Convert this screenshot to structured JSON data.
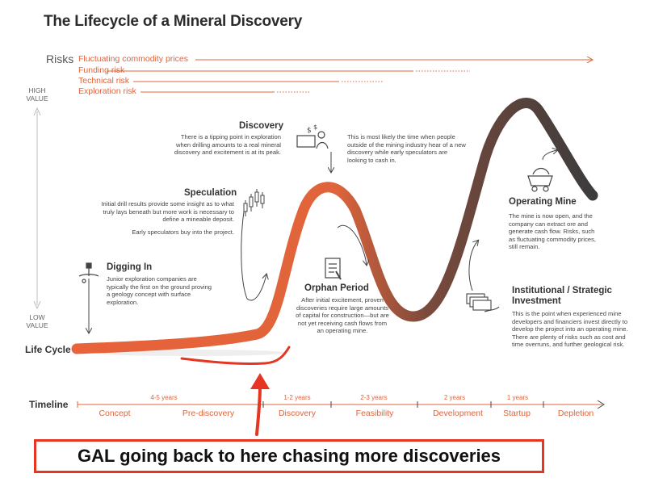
{
  "title": "The Lifecycle of a Mineral Discovery",
  "risks": {
    "label": "Risks",
    "items": [
      {
        "name": "Fluctuating commodity prices"
      },
      {
        "name": "Funding risk"
      },
      {
        "name": "Technical risk"
      },
      {
        "name": "Exploration risk"
      }
    ]
  },
  "value_axis": {
    "high": "HIGH VALUE",
    "low": "LOW VALUE"
  },
  "lifecycle_label": "Life Cycle",
  "stages": {
    "digging_in": {
      "title": "Digging In",
      "desc": "Junior exploration companies are typically the first on the ground proving a geology concept with surface exploration."
    },
    "speculation": {
      "title": "Speculation",
      "desc": "Initial drill results provide some insight as to what truly lays beneath but more work is necessary to define a mineable deposit.",
      "desc2": "Early speculators buy into the project."
    },
    "discovery": {
      "title": "Discovery",
      "desc": "There is a tipping point in exploration when drilling amounts to a real mineral discovery and excitement is at its peak.",
      "side_note": "This is most likely the time when people outside of the mining industry hear of a new discovery while early speculators are looking to cash in."
    },
    "orphan": {
      "title": "Orphan Period",
      "desc": "After initial excitement, proven discoveries require large amounts of capital for construction—but are not yet receiving cash flows from an operating mine."
    },
    "operating": {
      "title": "Operating Mine",
      "desc": "The mine is now open, and the company can extract ore and generate cash flow. Risks, such as fluctuating commodity prices, still remain."
    },
    "institutional": {
      "title": "Institutional / Strategic Investment",
      "desc": "This is the point when experienced mine developers and financiers invest directly to develop the project into an operating mine. There are plenty of risks such as cost and time overruns, and further geological risk."
    }
  },
  "timeline": {
    "label": "Timeline",
    "durations": [
      "4-5 years",
      "1-2 years",
      "2-3 years",
      "2 years",
      "1 years"
    ],
    "phases": [
      "Concept",
      "Pre-discovery",
      "Discovery",
      "Feasibility",
      "Development",
      "Startup",
      "Depletion"
    ]
  },
  "callout": "GAL going back to here chasing more discoveries",
  "colors": {
    "accent": "#e0643b",
    "curve_start": "#e8623a",
    "curve_end": "#3c3c3c",
    "callout_red": "#e53523"
  }
}
